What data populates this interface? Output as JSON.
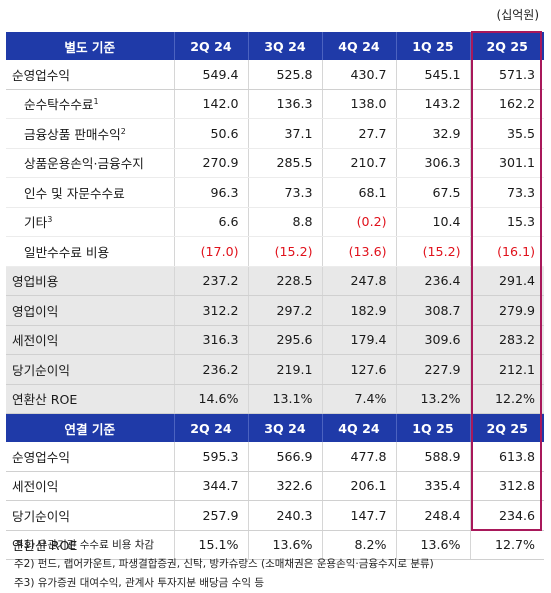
{
  "unit": "(십억원)",
  "columns": [
    "2Q 24",
    "3Q 24",
    "4Q 24",
    "1Q 25",
    "2Q 25"
  ],
  "sections": [
    {
      "header": "별도 기준",
      "rows": [
        {
          "label": "순영업수익",
          "sup": "",
          "indent": false,
          "values": [
            "549.4",
            "525.8",
            "430.7",
            "545.1",
            "571.3"
          ]
        },
        {
          "label": "순수탁수수료",
          "sup": "1",
          "indent": true,
          "values": [
            "142.0",
            "136.3",
            "138.0",
            "143.2",
            "162.2"
          ]
        },
        {
          "label": "금융상품 판매수익",
          "sup": "2",
          "indent": true,
          "values": [
            "50.6",
            "37.1",
            "27.7",
            "32.9",
            "35.5"
          ]
        },
        {
          "label": "상품운용손익·금융수지",
          "sup": "",
          "indent": true,
          "values": [
            "270.9",
            "285.5",
            "210.7",
            "306.3",
            "301.1"
          ]
        },
        {
          "label": "인수 및 자문수수료",
          "sup": "",
          "indent": true,
          "values": [
            "96.3",
            "73.3",
            "68.1",
            "67.5",
            "73.3"
          ]
        },
        {
          "label": "기타",
          "sup": "3",
          "indent": true,
          "values": [
            "6.6",
            "8.8",
            "(0.2)",
            "10.4",
            "15.3"
          ]
        },
        {
          "label": "일반수수료 비용",
          "sup": "",
          "indent": true,
          "values": [
            "(17.0)",
            "(15.2)",
            "(13.6)",
            "(15.2)",
            "(16.1)"
          ]
        },
        {
          "label": "영업비용",
          "sup": "",
          "indent": false,
          "values": [
            "237.2",
            "228.5",
            "247.8",
            "236.4",
            "291.4"
          ]
        },
        {
          "label": "영업이익",
          "sup": "",
          "indent": false,
          "values": [
            "312.2",
            "297.2",
            "182.9",
            "308.7",
            "279.9"
          ]
        },
        {
          "label": "세전이익",
          "sup": "",
          "indent": false,
          "values": [
            "316.3",
            "295.6",
            "179.4",
            "309.6",
            "283.2"
          ]
        },
        {
          "label": "당기순이익",
          "sup": "",
          "indent": false,
          "values": [
            "236.2",
            "219.1",
            "127.6",
            "227.9",
            "212.1"
          ]
        },
        {
          "label": "연환산 ROE",
          "sup": "",
          "indent": false,
          "values": [
            "14.6%",
            "13.1%",
            "7.4%",
            "13.2%",
            "12.2%"
          ]
        }
      ]
    },
    {
      "header": "연결 기준",
      "rows": [
        {
          "label": "순영업수익",
          "sup": "",
          "indent": false,
          "values": [
            "595.3",
            "566.9",
            "477.8",
            "588.9",
            "613.8"
          ]
        },
        {
          "label": "세전이익",
          "sup": "",
          "indent": false,
          "values": [
            "344.7",
            "322.6",
            "206.1",
            "335.4",
            "312.8"
          ]
        },
        {
          "label": "당기순이익",
          "sup": "",
          "indent": false,
          "values": [
            "257.9",
            "240.3",
            "147.7",
            "248.4",
            "234.6"
          ]
        },
        {
          "label": "연환산 ROE",
          "sup": "",
          "indent": false,
          "values": [
            "15.1%",
            "13.6%",
            "8.2%",
            "13.6%",
            "12.7%"
          ]
        }
      ]
    }
  ],
  "footnotes": [
    "주1) 유관기관 수수료 비용 차감",
    "주2) 펀드, 랩어카운트, 파생결합증권, 신탁, 방카슈랑스 (소매채권은 운용손익·금융수지로 분류)",
    "주3) 유가증권 대여수익, 관계사 투자지분 배당금 수익 등"
  ],
  "colors": {
    "header_bg": "#1f3aa8",
    "grey_bg": "#e8e8e8",
    "negative": "#e0111b",
    "highlight_border": "#a8185a"
  }
}
